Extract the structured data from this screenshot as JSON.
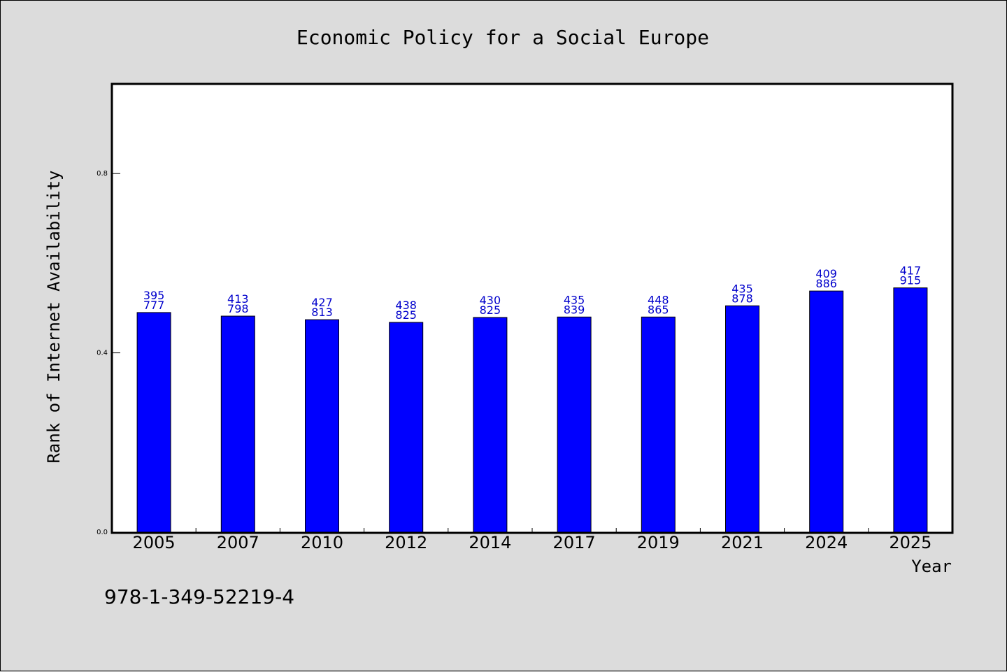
{
  "isbn": "978-1-349-52219-4",
  "colors": {
    "bar": "#0000ff",
    "label": "#0000cc",
    "background": "#dcdcdc",
    "plot": "#ffffff"
  },
  "chart_data": {
    "type": "bar",
    "title": "Economic Policy for a Social Europe",
    "xlabel": "Year",
    "ylabel": "Rank of Internet Availability",
    "categories": [
      "2005",
      "2007",
      "2010",
      "2012",
      "2014",
      "2017",
      "2019",
      "2021",
      "2024",
      "2025"
    ],
    "values": [
      0.49,
      0.482,
      0.474,
      0.468,
      0.479,
      0.48,
      0.48,
      0.505,
      0.538,
      0.545
    ],
    "label_top": [
      "395",
      "413",
      "427",
      "438",
      "430",
      "435",
      "448",
      "435",
      "409",
      "417"
    ],
    "label_bottom": [
      "777",
      "798",
      "813",
      "825",
      "825",
      "839",
      "865",
      "878",
      "886",
      "915"
    ],
    "ylim": [
      0,
      1.0
    ],
    "yticks": [
      0.0,
      0.4,
      0.8
    ],
    "ytick_labels": [
      "0.0",
      "0.4",
      "0.8"
    ],
    "grid": false,
    "legend": "none"
  }
}
